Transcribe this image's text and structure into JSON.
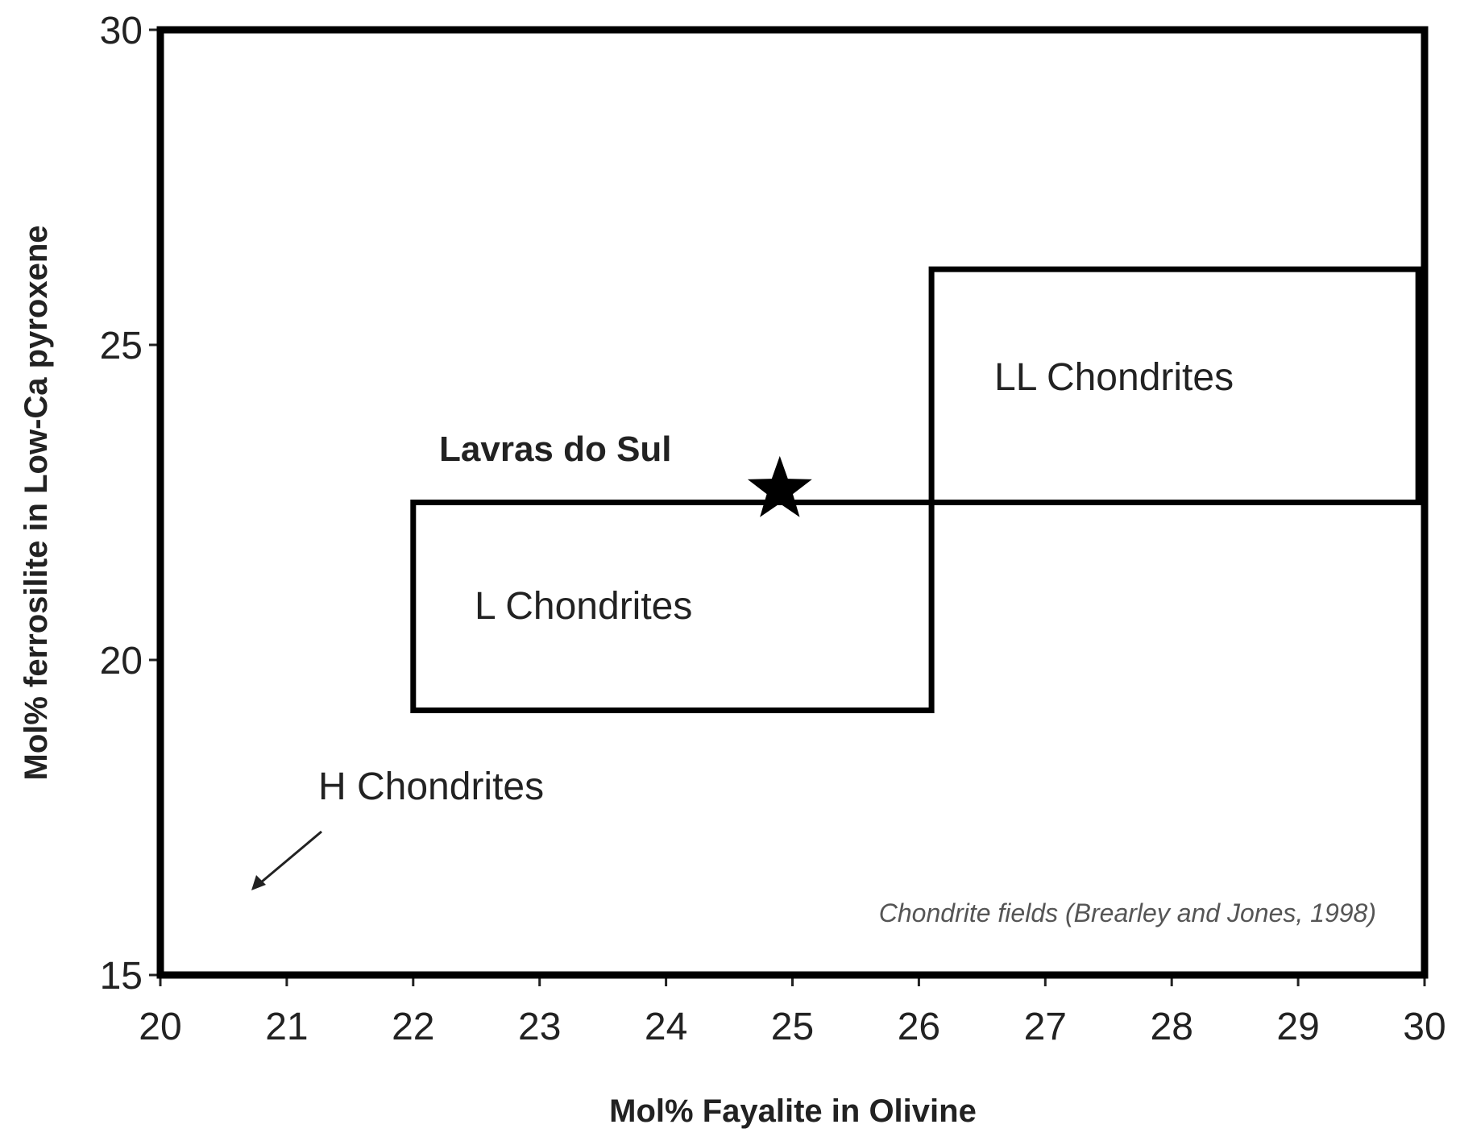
{
  "chart_data": {
    "type": "scatter",
    "x_label": "Mol% Fayalite in Olivine",
    "y_label": "Mol% ferrosilite in Low-Ca pyroxene",
    "xlim": [
      20,
      30
    ],
    "ylim": [
      15,
      30
    ],
    "xticks": [
      20,
      21,
      22,
      23,
      24,
      25,
      26,
      27,
      28,
      29,
      30
    ],
    "yticks": [
      15,
      20,
      25,
      30
    ],
    "regions": [
      {
        "name": "L Chondrites",
        "x": [
          22,
          26.1
        ],
        "y": [
          19.2,
          22.5
        ]
      },
      {
        "name": "LL Chondrites",
        "x": [
          26.1,
          29.95
        ],
        "y": [
          22.5,
          26.2
        ]
      }
    ],
    "points": [
      {
        "name": "Lavras do Sul",
        "x": 24.9,
        "y": 22.7,
        "color": "#000000"
      }
    ],
    "annotations": [
      "H Chondrites",
      "Chondrite fields (Brearley and Jones, 1998)"
    ]
  }
}
